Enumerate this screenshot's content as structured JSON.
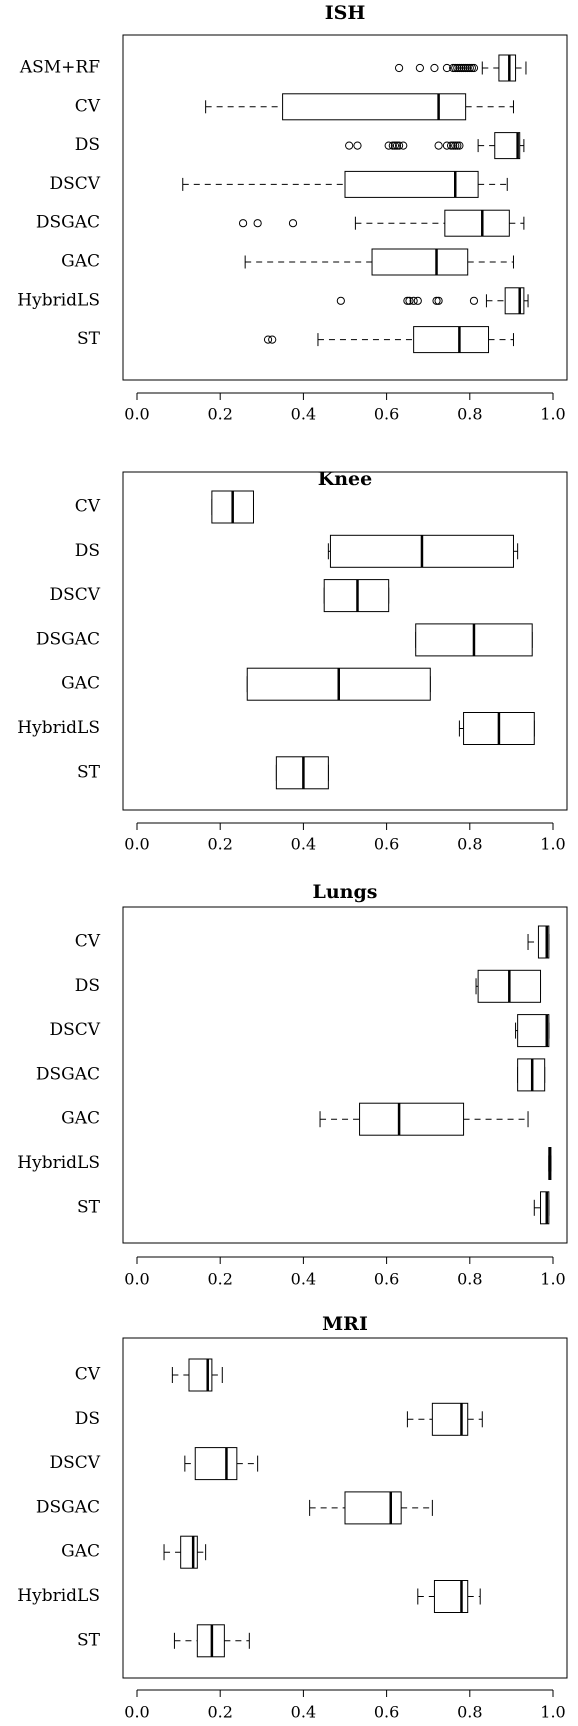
{
  "chart_data": [
    {
      "type": "boxplot",
      "title": "ISH",
      "orientation": "horizontal",
      "xlim": [
        0,
        1
      ],
      "xticks": [
        "0.0",
        "0.2",
        "0.4",
        "0.6",
        "0.8",
        "1.0"
      ],
      "categories": [
        "ASM+RF",
        "CV",
        "DS",
        "DSCV",
        "DSGAC",
        "GAC",
        "HybridLS",
        "ST"
      ],
      "boxes": [
        {
          "whislo": 0.83,
          "q1": 0.87,
          "median": 0.895,
          "q3": 0.91,
          "whishi": 0.935,
          "fliers": [
            0.63,
            0.68,
            0.715,
            0.745,
            0.76,
            0.765,
            0.77,
            0.775,
            0.78,
            0.785,
            0.79,
            0.795,
            0.8,
            0.805,
            0.81
          ]
        },
        {
          "whislo": 0.165,
          "q1": 0.35,
          "median": 0.725,
          "q3": 0.79,
          "whishi": 0.905,
          "fliers": []
        },
        {
          "whislo": 0.82,
          "q1": 0.86,
          "median": 0.915,
          "q3": 0.92,
          "whishi": 0.93,
          "fliers": [
            0.51,
            0.53,
            0.605,
            0.615,
            0.62,
            0.625,
            0.63,
            0.64,
            0.725,
            0.745,
            0.755,
            0.76,
            0.765,
            0.77,
            0.775
          ]
        },
        {
          "whislo": 0.11,
          "q1": 0.5,
          "median": 0.765,
          "q3": 0.82,
          "whishi": 0.89,
          "fliers": []
        },
        {
          "whislo": 0.525,
          "q1": 0.74,
          "median": 0.83,
          "q3": 0.895,
          "whishi": 0.93,
          "fliers": [
            0.255,
            0.29,
            0.375
          ]
        },
        {
          "whislo": 0.26,
          "q1": 0.565,
          "median": 0.72,
          "q3": 0.795,
          "whishi": 0.905,
          "fliers": []
        },
        {
          "whislo": 0.84,
          "q1": 0.885,
          "median": 0.92,
          "q3": 0.93,
          "whishi": 0.94,
          "fliers": [
            0.49,
            0.65,
            0.655,
            0.665,
            0.675,
            0.72,
            0.725,
            0.81
          ]
        },
        {
          "whislo": 0.435,
          "q1": 0.665,
          "median": 0.775,
          "q3": 0.845,
          "whishi": 0.905,
          "fliers": [
            0.315,
            0.325
          ]
        }
      ]
    },
    {
      "type": "boxplot",
      "title": "Knee",
      "orientation": "horizontal",
      "xlim": [
        0,
        1
      ],
      "xticks": [
        "0.0",
        "0.2",
        "0.4",
        "0.6",
        "0.8",
        "1.0"
      ],
      "categories": [
        "CV",
        "DS",
        "DSCV",
        "DSGAC",
        "GAC",
        "HybridLS",
        "ST"
      ],
      "boxes": [
        {
          "whislo": 0.18,
          "q1": 0.18,
          "median": 0.23,
          "q3": 0.28,
          "whishi": 0.28,
          "fliers": []
        },
        {
          "whislo": 0.46,
          "q1": 0.465,
          "median": 0.685,
          "q3": 0.905,
          "whishi": 0.915,
          "fliers": []
        },
        {
          "whislo": 0.45,
          "q1": 0.45,
          "median": 0.53,
          "q3": 0.605,
          "whishi": 0.605,
          "fliers": []
        },
        {
          "whislo": 0.67,
          "q1": 0.67,
          "median": 0.81,
          "q3": 0.95,
          "whishi": 0.95,
          "fliers": []
        },
        {
          "whislo": 0.265,
          "q1": 0.265,
          "median": 0.485,
          "q3": 0.705,
          "whishi": 0.705,
          "fliers": []
        },
        {
          "whislo": 0.775,
          "q1": 0.785,
          "median": 0.87,
          "q3": 0.955,
          "whishi": 0.955,
          "fliers": []
        },
        {
          "whislo": 0.335,
          "q1": 0.335,
          "median": 0.4,
          "q3": 0.46,
          "whishi": 0.46,
          "fliers": []
        }
      ]
    },
    {
      "type": "boxplot",
      "title": "Lungs",
      "orientation": "horizontal",
      "xlim": [
        0,
        1
      ],
      "xticks": [
        "0.0",
        "0.2",
        "0.4",
        "0.6",
        "0.8",
        "1.0"
      ],
      "categories": [
        "CV",
        "DS",
        "DSCV",
        "DSGAC",
        "GAC",
        "HybridLS",
        "ST"
      ],
      "boxes": [
        {
          "whislo": 0.94,
          "q1": 0.965,
          "median": 0.985,
          "q3": 0.99,
          "whishi": 0.99,
          "fliers": []
        },
        {
          "whislo": 0.815,
          "q1": 0.82,
          "median": 0.895,
          "q3": 0.97,
          "whishi": 0.97,
          "fliers": []
        },
        {
          "whislo": 0.91,
          "q1": 0.915,
          "median": 0.985,
          "q3": 0.99,
          "whishi": 0.99,
          "fliers": []
        },
        {
          "whislo": 0.915,
          "q1": 0.915,
          "median": 0.95,
          "q3": 0.98,
          "whishi": 0.98,
          "fliers": []
        },
        {
          "whislo": 0.44,
          "q1": 0.535,
          "median": 0.63,
          "q3": 0.785,
          "whishi": 0.94,
          "fliers": []
        },
        {
          "whislo": 0.99,
          "q1": 0.99,
          "median": 0.992,
          "q3": 0.995,
          "whishi": 0.995,
          "fliers": []
        },
        {
          "whislo": 0.955,
          "q1": 0.97,
          "median": 0.985,
          "q3": 0.99,
          "whishi": 0.99,
          "fliers": []
        }
      ]
    },
    {
      "type": "boxplot",
      "title": "MRI",
      "orientation": "horizontal",
      "xlim": [
        0,
        1
      ],
      "xticks": [
        "0.0",
        "0.2",
        "0.4",
        "0.6",
        "0.8",
        "1.0"
      ],
      "categories": [
        "CV",
        "DS",
        "DSCV",
        "DSGAC",
        "GAC",
        "HybridLS",
        "ST"
      ],
      "boxes": [
        {
          "whislo": 0.085,
          "q1": 0.125,
          "median": 0.17,
          "q3": 0.18,
          "whishi": 0.205,
          "fliers": []
        },
        {
          "whislo": 0.65,
          "q1": 0.71,
          "median": 0.78,
          "q3": 0.795,
          "whishi": 0.83,
          "fliers": []
        },
        {
          "whislo": 0.115,
          "q1": 0.14,
          "median": 0.215,
          "q3": 0.24,
          "whishi": 0.29,
          "fliers": []
        },
        {
          "whislo": 0.415,
          "q1": 0.5,
          "median": 0.61,
          "q3": 0.635,
          "whishi": 0.71,
          "fliers": []
        },
        {
          "whislo": 0.065,
          "q1": 0.105,
          "median": 0.135,
          "q3": 0.145,
          "whishi": 0.165,
          "fliers": []
        },
        {
          "whislo": 0.675,
          "q1": 0.715,
          "median": 0.78,
          "q3": 0.795,
          "whishi": 0.825,
          "fliers": []
        },
        {
          "whislo": 0.09,
          "q1": 0.145,
          "median": 0.18,
          "q3": 0.21,
          "whishi": 0.27,
          "fliers": []
        }
      ]
    }
  ]
}
